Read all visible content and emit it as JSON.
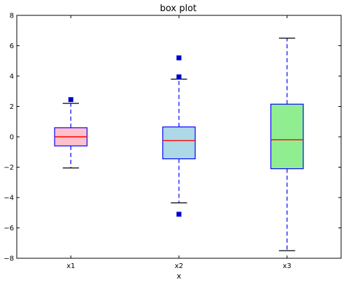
{
  "chart_data": {
    "type": "box",
    "title": "box plot",
    "xlabel": "x",
    "ylabel": "",
    "ylim": [
      -8,
      8
    ],
    "yticks": [
      -8,
      -6,
      -4,
      -2,
      0,
      2,
      4,
      6,
      8
    ],
    "grid": false,
    "categories": [
      "x1",
      "x2",
      "x3"
    ],
    "boxes": [
      {
        "name": "x1",
        "whisker_low": -2.05,
        "q1": -0.6,
        "median": 0.0,
        "q3": 0.6,
        "whisker_high": 2.2,
        "outliers": [
          2.45
        ],
        "fill": "#ffc0cb"
      },
      {
        "name": "x2",
        "whisker_low": -4.35,
        "q1": -1.45,
        "median": -0.25,
        "q3": 0.65,
        "whisker_high": 3.8,
        "outliers": [
          3.95,
          5.2,
          -5.1
        ],
        "fill": "#add8e6"
      },
      {
        "name": "x3",
        "whisker_low": -7.5,
        "q1": -2.1,
        "median": -0.2,
        "q3": 2.15,
        "whisker_high": 6.5,
        "outliers": [],
        "fill": "#90ee90"
      }
    ],
    "colors": {
      "box_edge": "#0000ff",
      "whisker": "#0000ff",
      "median": "#ff0000",
      "cap": "#000000",
      "outlier": "#0000cc"
    }
  }
}
